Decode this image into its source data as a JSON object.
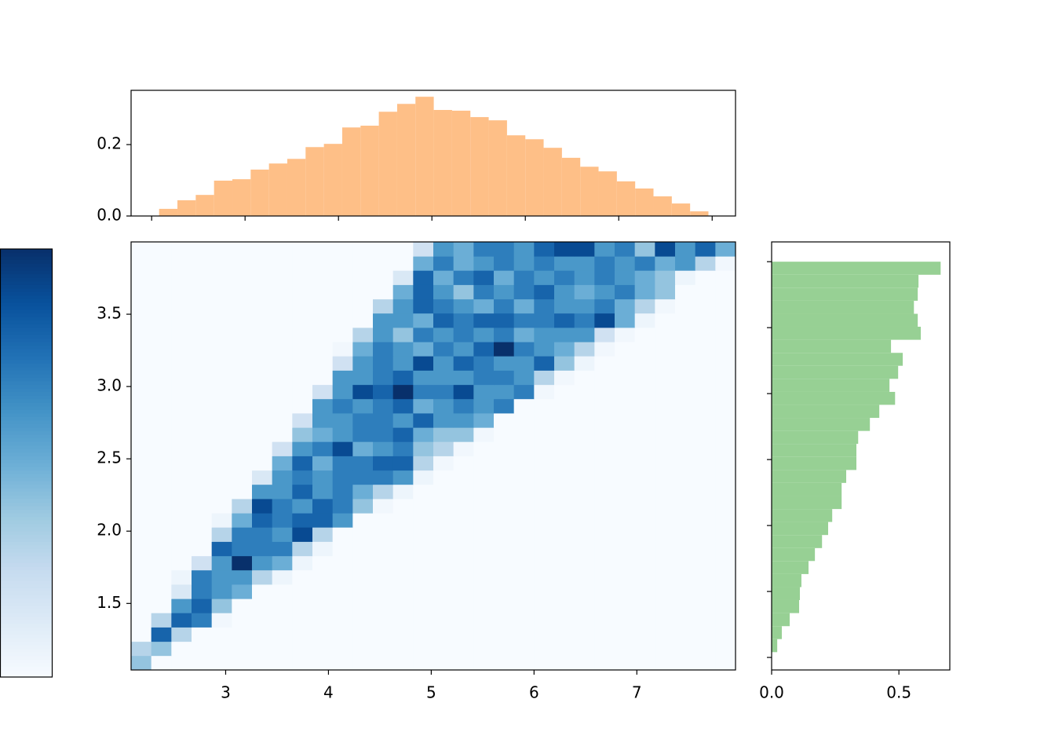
{
  "chart_data": [
    {
      "type": "histogram",
      "orientation": "vertical",
      "color": "#febf87",
      "bins": [
        2.08,
        2.276,
        2.472,
        2.668,
        2.864,
        3.06,
        3.256,
        3.452,
        3.648,
        3.844,
        4.04,
        4.236,
        4.432,
        4.628,
        4.824,
        5.02,
        5.216,
        5.412,
        5.608,
        5.804,
        6.0,
        6.196,
        6.392,
        6.588,
        6.784,
        6.98,
        7.176,
        7.372,
        7.568,
        7.764,
        7.96
      ],
      "values": [
        0.02,
        0.044,
        0.059,
        0.099,
        0.103,
        0.13,
        0.147,
        0.16,
        0.193,
        0.202,
        0.248,
        0.253,
        0.292,
        0.314,
        0.334,
        0.297,
        0.295,
        0.277,
        0.268,
        0.226,
        0.215,
        0.191,
        0.163,
        0.138,
        0.125,
        0.097,
        0.077,
        0.055,
        0.035,
        0.013
      ],
      "xlim": [
        1.78,
        8.25
      ],
      "xticks": [
        2,
        3,
        4,
        5,
        6,
        7,
        8
      ],
      "xtick_labels": false,
      "ylim": [
        0,
        0.352
      ],
      "yticks": [
        {
          "value": 0,
          "label": "0.0"
        },
        0.2
      ]
    },
    {
      "type": "heatmap",
      "colorbar": true,
      "clim": [
        0,
        10
      ],
      "colors": [
        "#f7fbff",
        "#deebf7",
        "#c6dbef",
        "#9ecae1",
        "#6baed6",
        "#4292c6",
        "#2171b5",
        "#08519c",
        "#08306b"
      ],
      "xbins": [
        2.08,
        2.276,
        2.472,
        2.668,
        2.864,
        3.06,
        3.256,
        3.452,
        3.648,
        3.844,
        4.04,
        4.236,
        4.432,
        4.628,
        4.824,
        5.02,
        5.216,
        5.412,
        5.608,
        5.804,
        6.0,
        6.196,
        6.392,
        6.588,
        6.784,
        6.98,
        7.176,
        7.372,
        7.568,
        7.764,
        7.96
      ],
      "ybins": [
        1.04,
        1.139,
        1.237,
        1.336,
        1.435,
        1.533,
        1.632,
        1.731,
        1.829,
        1.928,
        2.027,
        2.125,
        2.224,
        2.323,
        2.421,
        2.52,
        2.619,
        2.717,
        2.816,
        2.915,
        3.013,
        3.112,
        3.211,
        3.309,
        3.408,
        3.507,
        3.605,
        3.704,
        3.803,
        3.901,
        4.0
      ],
      "z": [
        [
          4,
          0,
          0,
          0,
          0,
          0,
          0,
          0,
          0,
          0,
          0,
          0,
          0,
          0,
          0,
          0,
          0,
          0,
          0,
          0,
          0,
          0,
          0,
          0,
          0,
          0,
          0,
          0,
          0,
          0
        ],
        [
          3,
          4,
          0,
          0,
          0,
          0,
          0,
          0,
          0,
          0,
          0,
          0,
          0,
          0,
          0,
          0,
          0,
          0,
          0,
          0,
          0,
          0,
          0,
          0,
          0,
          0,
          0,
          0,
          0,
          0
        ],
        [
          0,
          8,
          3,
          0,
          0,
          0,
          0,
          0,
          0,
          0,
          0,
          0,
          0,
          0,
          0,
          0,
          0,
          0,
          0,
          0,
          0,
          0,
          0,
          0,
          0,
          0,
          0,
          0,
          0,
          0
        ],
        [
          0,
          3,
          8,
          7,
          0.3,
          0,
          0,
          0,
          0,
          0,
          0,
          0,
          0,
          0,
          0,
          0,
          0,
          0,
          0,
          0,
          0,
          0,
          0,
          0,
          0,
          0,
          0,
          0,
          0,
          0
        ],
        [
          0,
          0,
          6,
          8,
          4,
          0,
          0,
          0,
          0,
          0,
          0,
          0,
          0,
          0,
          0,
          0,
          0,
          0,
          0,
          0,
          0,
          0,
          0,
          0,
          0,
          0,
          0,
          0,
          0,
          0
        ],
        [
          0,
          0,
          1.5,
          7,
          6,
          5,
          0,
          0,
          0,
          0,
          0,
          0,
          0,
          0,
          0,
          0,
          0,
          0,
          0,
          0,
          0,
          0,
          0,
          0,
          0,
          0,
          0,
          0,
          0,
          0
        ],
        [
          0,
          0,
          0.5,
          7,
          6,
          6,
          3,
          0.5,
          0,
          0,
          0,
          0,
          0,
          0,
          0,
          0,
          0,
          0,
          0,
          0,
          0,
          0,
          0,
          0,
          0,
          0,
          0,
          0,
          0,
          0
        ],
        [
          0,
          0,
          0,
          2,
          6,
          10,
          6,
          5,
          0.5,
          0,
          0,
          0,
          0,
          0,
          0,
          0,
          0,
          0,
          0,
          0,
          0,
          0,
          0,
          0,
          0,
          0,
          0,
          0,
          0,
          0
        ],
        [
          0,
          0,
          0,
          0,
          8,
          7,
          7,
          7,
          3,
          0.5,
          0,
          0,
          0,
          0,
          0,
          0,
          0,
          0,
          0,
          0,
          0,
          0,
          0,
          0,
          0,
          0,
          0,
          0,
          0,
          0
        ],
        [
          0,
          0,
          0,
          0,
          3,
          7,
          7,
          6,
          9,
          3,
          0,
          0,
          0,
          0,
          0,
          0,
          0,
          0,
          0,
          0,
          0,
          0,
          0,
          0,
          0,
          0,
          0,
          0,
          0,
          0
        ],
        [
          0,
          0,
          0,
          0,
          0.5,
          5,
          8,
          7,
          8,
          8,
          6,
          0,
          0,
          0,
          0,
          0,
          0,
          0,
          0,
          0,
          0,
          0,
          0,
          0,
          0,
          0,
          0,
          0,
          0,
          0
        ],
        [
          0,
          0,
          0,
          0,
          0,
          3,
          9,
          7,
          6,
          8,
          7,
          4,
          0.3,
          0,
          0,
          0,
          0,
          0,
          0,
          0,
          0,
          0,
          0,
          0,
          0,
          0,
          0,
          0,
          0,
          0
        ],
        [
          0,
          0,
          0,
          0,
          0,
          0,
          6,
          6,
          8,
          6,
          7,
          5,
          3,
          0.5,
          0,
          0,
          0,
          0,
          0,
          0,
          0,
          0,
          0,
          0,
          0,
          0,
          0,
          0,
          0,
          0
        ],
        [
          0,
          0,
          0,
          0,
          0,
          0,
          1.5,
          6,
          7,
          6,
          7,
          7,
          7,
          6,
          0.5,
          0,
          0,
          0,
          0,
          0,
          0,
          0,
          0,
          0,
          0,
          0,
          0,
          0,
          0,
          0
        ],
        [
          0,
          0,
          0,
          0,
          0,
          0,
          0,
          5,
          8,
          5,
          7,
          7,
          8,
          8,
          3,
          0.3,
          0,
          0,
          0,
          0,
          0,
          0,
          0,
          0,
          0,
          0,
          0,
          0,
          0,
          0
        ],
        [
          0,
          0,
          0,
          0,
          0,
          0,
          0,
          2,
          6,
          7,
          9,
          5,
          6,
          7,
          4,
          3,
          0.3,
          0,
          0,
          0,
          0,
          0,
          0,
          0,
          0,
          0,
          0,
          0,
          0,
          0
        ],
        [
          0,
          0,
          0,
          0,
          0,
          0,
          0,
          0,
          4,
          5,
          6,
          7,
          7,
          8,
          5,
          4,
          4,
          0.3,
          0,
          0,
          0,
          0,
          0,
          0,
          0,
          0,
          0,
          0,
          0,
          0
        ],
        [
          0,
          0,
          0,
          0,
          0,
          0,
          0,
          0,
          2,
          6,
          6,
          7,
          7,
          6,
          8,
          6,
          6,
          5,
          0,
          0,
          0,
          0,
          0,
          0,
          0,
          0,
          0,
          0,
          0,
          0
        ],
        [
          0,
          0,
          0,
          0,
          0,
          0,
          0,
          0,
          0,
          6,
          7,
          6,
          7,
          8,
          5,
          6,
          7,
          6,
          7,
          0,
          0,
          0,
          0,
          0,
          0,
          0,
          0,
          0,
          0,
          0
        ],
        [
          0,
          0,
          0,
          0,
          0,
          0,
          0,
          0,
          0,
          2,
          6,
          9,
          8,
          10,
          7,
          7,
          9,
          6,
          6,
          7,
          0.3,
          0,
          0,
          0,
          0,
          0,
          0,
          0,
          0,
          0
        ],
        [
          0,
          0,
          0,
          0,
          0,
          0,
          0,
          0,
          0,
          0,
          6,
          6,
          7,
          8,
          6,
          6,
          6,
          7,
          7,
          6,
          3,
          0.3,
          0,
          0,
          0,
          0,
          0,
          0,
          0,
          0
        ],
        [
          0,
          0,
          0,
          0,
          0,
          0,
          0,
          0,
          0,
          0,
          2,
          6,
          7,
          6,
          9,
          6,
          8,
          7,
          6,
          6,
          8,
          4,
          0.5,
          0,
          0,
          0,
          0,
          0,
          0,
          0
        ],
        [
          0,
          0,
          0,
          0,
          0,
          0,
          0,
          0,
          0,
          0,
          0.3,
          5,
          7,
          6,
          5,
          7,
          6,
          8,
          10,
          7,
          6,
          5,
          3,
          0.3,
          0,
          0,
          0,
          0,
          0,
          0
        ],
        [
          0,
          0,
          0,
          0,
          0,
          0,
          0,
          0,
          0,
          0,
          0,
          3,
          6,
          4,
          7,
          6,
          7,
          6,
          7,
          5,
          6,
          6,
          6,
          2,
          0.3,
          0,
          0,
          0,
          0,
          0
        ],
        [
          0,
          0,
          0,
          0,
          0,
          0,
          0,
          0,
          0,
          0,
          0,
          0,
          6,
          6,
          5,
          8,
          7,
          8,
          8,
          7,
          7,
          8,
          7,
          9,
          5,
          0.5,
          0,
          0,
          0,
          0
        ],
        [
          0,
          0,
          0,
          0,
          0,
          0,
          0,
          0,
          0,
          0,
          0,
          0,
          3,
          6,
          8,
          7,
          6,
          5,
          7,
          5,
          7,
          6,
          6,
          7,
          5,
          3,
          0.3,
          0,
          0,
          0
        ],
        [
          0,
          0,
          0,
          0,
          0,
          0,
          0,
          0,
          0,
          0,
          0,
          0,
          0,
          5,
          8,
          6,
          4,
          7,
          6,
          7,
          8,
          6,
          5,
          6,
          7,
          5,
          4,
          0,
          0,
          0
        ],
        [
          0,
          0,
          0,
          0,
          0,
          0,
          0,
          0,
          0,
          0,
          0,
          0,
          0,
          1.5,
          8,
          5,
          7,
          8,
          5,
          7,
          6,
          7,
          6,
          7,
          6,
          5,
          4,
          0.5,
          0,
          0
        ],
        [
          0,
          0,
          0,
          0,
          0,
          0,
          0,
          0,
          0,
          0,
          0,
          0,
          0,
          0,
          5,
          7,
          5,
          6,
          7,
          6,
          7,
          6,
          6,
          7,
          6,
          7,
          5,
          6,
          3,
          0.3
        ],
        [
          0,
          0,
          0,
          0,
          0,
          0,
          0,
          0,
          0,
          0,
          0,
          0,
          0,
          0,
          2,
          6,
          5,
          7,
          7,
          6,
          8,
          9,
          9,
          6,
          7,
          4,
          9,
          6,
          8,
          5
        ]
      ],
      "xlim": [
        2.08,
        7.96
      ],
      "xticks": [
        3,
        4,
        5,
        6,
        7
      ],
      "ylim": [
        1.04,
        4.0
      ],
      "yticks": [
        1.5,
        {
          "value": 2,
          "label": "2.0"
        },
        2.5,
        {
          "value": 3,
          "label": "3.0"
        },
        3.5
      ]
    },
    {
      "type": "histogram",
      "orientation": "horizontal",
      "color": "#97d094",
      "bins": [
        1.04,
        1.139,
        1.237,
        1.336,
        1.435,
        1.533,
        1.632,
        1.731,
        1.829,
        1.928,
        2.027,
        2.125,
        2.224,
        2.323,
        2.421,
        2.52,
        2.619,
        2.717,
        2.816,
        2.915,
        3.013,
        3.112,
        3.211,
        3.309,
        3.408,
        3.507,
        3.605,
        3.704,
        3.803,
        3.901,
        4.0
      ],
      "values": [
        0.022,
        0.04,
        0.071,
        0.108,
        0.111,
        0.117,
        0.145,
        0.17,
        0.198,
        0.222,
        0.238,
        0.275,
        0.275,
        0.293,
        0.333,
        0.333,
        0.34,
        0.386,
        0.423,
        0.485,
        0.463,
        0.497,
        0.515,
        0.469,
        0.586,
        0.574,
        0.559,
        0.574,
        0.577,
        0.664
      ],
      "xlim": [
        0,
        0.7
      ],
      "xticks": [
        {
          "value": 0,
          "label": "0.0"
        },
        0.5
      ],
      "ylim": [
        0.905,
        4.15
      ],
      "yticks": [
        1,
        1.5,
        2,
        2.5,
        3,
        3.5,
        4
      ],
      "ytick_labels": false
    }
  ]
}
